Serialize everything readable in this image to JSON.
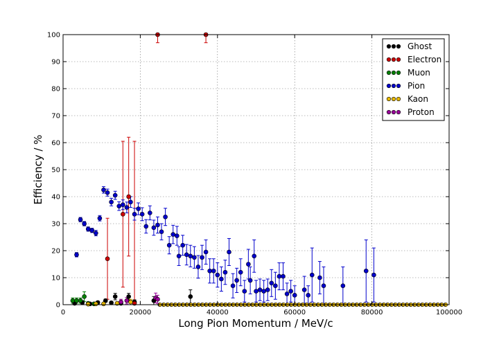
{
  "chart_data": {
    "type": "scatter",
    "title": "",
    "xlabel": "Long Pion Momentum / MeV/c",
    "ylabel": "Efficiency / %",
    "xlim": [
      0,
      100000
    ],
    "ylim": [
      0,
      100
    ],
    "xticks": [
      0,
      20000,
      40000,
      60000,
      80000,
      100000
    ],
    "yticks": [
      0,
      10,
      20,
      30,
      40,
      50,
      60,
      70,
      80,
      90,
      100
    ],
    "grid": true,
    "legend_position": "top-right",
    "series": [
      {
        "name": "Ghost",
        "color": "#000000",
        "points": [
          {
            "x": 3000,
            "y": 0.5,
            "err": 0.5
          },
          {
            "x": 5000,
            "y": 0.8,
            "err": 0.7
          },
          {
            "x": 7000,
            "y": 0.3,
            "err": 0.3
          },
          {
            "x": 9000,
            "y": 0.8,
            "err": 0.5
          },
          {
            "x": 11000,
            "y": 1.5,
            "err": 0.6
          },
          {
            "x": 12500,
            "y": 0.7,
            "err": 0.5
          },
          {
            "x": 13500,
            "y": 3.0,
            "err": 1.2
          },
          {
            "x": 15000,
            "y": 0.5,
            "err": 0.5
          },
          {
            "x": 17000,
            "y": 3.0,
            "err": 1.2
          },
          {
            "x": 18500,
            "y": 1.0,
            "err": 0.8
          },
          {
            "x": 23500,
            "y": 1.5,
            "err": 1.5
          },
          {
            "x": 33000,
            "y": 3.0,
            "err": 2.5
          }
        ]
      },
      {
        "name": "Electron",
        "color": "#cc0000",
        "points": [
          {
            "x": 11500,
            "y": 17.0,
            "err": 15.0
          },
          {
            "x": 15500,
            "y": 33.5,
            "err": 27.0
          },
          {
            "x": 17000,
            "y": 40.0,
            "err": 22.0
          },
          {
            "x": 18500,
            "y": 0.5,
            "err": 60.0
          },
          {
            "x": 24500,
            "y": 100.0,
            "err": 3.0
          },
          {
            "x": 37000,
            "y": 100.0,
            "err": 3.0
          }
        ]
      },
      {
        "name": "Muon",
        "color": "#008000",
        "points": [
          {
            "x": 2500,
            "y": 1.5,
            "err": 1.0
          },
          {
            "x": 3500,
            "y": 1.5,
            "err": 1.0
          },
          {
            "x": 4500,
            "y": 1.5,
            "err": 1.0
          },
          {
            "x": 5500,
            "y": 3.0,
            "err": 1.8
          },
          {
            "x": 6500,
            "y": 0.5,
            "err": 0.5
          },
          {
            "x": 8000,
            "y": 0.3,
            "err": 0.3
          }
        ]
      },
      {
        "name": "Pion",
        "color": "#0000cc",
        "points": [
          {
            "x": 3500,
            "y": 18.5,
            "err": 0.8
          },
          {
            "x": 4500,
            "y": 31.5,
            "err": 0.8
          },
          {
            "x": 5500,
            "y": 30.0,
            "err": 0.8
          },
          {
            "x": 6500,
            "y": 28.0,
            "err": 0.8
          },
          {
            "x": 7500,
            "y": 27.5,
            "err": 0.8
          },
          {
            "x": 8500,
            "y": 26.5,
            "err": 1.0
          },
          {
            "x": 9500,
            "y": 32.0,
            "err": 1.0
          },
          {
            "x": 10500,
            "y": 42.5,
            "err": 1.2
          },
          {
            "x": 11500,
            "y": 41.5,
            "err": 1.3
          },
          {
            "x": 12500,
            "y": 38.0,
            "err": 1.4
          },
          {
            "x": 13500,
            "y": 40.5,
            "err": 1.5
          },
          {
            "x": 14500,
            "y": 36.5,
            "err": 1.6
          },
          {
            "x": 15500,
            "y": 37.0,
            "err": 1.8
          },
          {
            "x": 16500,
            "y": 36.0,
            "err": 2.0
          },
          {
            "x": 17500,
            "y": 38.0,
            "err": 2.0
          },
          {
            "x": 18500,
            "y": 33.5,
            "err": 2.2
          },
          {
            "x": 19500,
            "y": 35.5,
            "err": 2.2
          },
          {
            "x": 20500,
            "y": 33.5,
            "err": 2.4
          },
          {
            "x": 21500,
            "y": 29.0,
            "err": 2.5
          },
          {
            "x": 22500,
            "y": 34.0,
            "err": 2.6
          },
          {
            "x": 23500,
            "y": 28.5,
            "err": 2.8
          },
          {
            "x": 24500,
            "y": 29.5,
            "err": 3.0
          },
          {
            "x": 25500,
            "y": 27.0,
            "err": 3.0
          },
          {
            "x": 26500,
            "y": 32.5,
            "err": 3.2
          },
          {
            "x": 27500,
            "y": 22.0,
            "err": 3.2
          },
          {
            "x": 28500,
            "y": 26.0,
            "err": 3.4
          },
          {
            "x": 29500,
            "y": 25.5,
            "err": 3.5
          },
          {
            "x": 30000,
            "y": 18.0,
            "err": 3.5
          },
          {
            "x": 31000,
            "y": 22.0,
            "err": 3.7
          },
          {
            "x": 32000,
            "y": 18.5,
            "err": 3.8
          },
          {
            "x": 33000,
            "y": 18.0,
            "err": 4.0
          },
          {
            "x": 34000,
            "y": 17.5,
            "err": 4.0
          },
          {
            "x": 35000,
            "y": 14.0,
            "err": 4.2
          },
          {
            "x": 36000,
            "y": 17.5,
            "err": 4.5
          },
          {
            "x": 37000,
            "y": 19.5,
            "err": 4.5
          },
          {
            "x": 38000,
            "y": 12.5,
            "err": 4.5
          },
          {
            "x": 39000,
            "y": 12.5,
            "err": 4.5
          },
          {
            "x": 40000,
            "y": 11.0,
            "err": 4.5
          },
          {
            "x": 41000,
            "y": 9.5,
            "err": 4.5
          },
          {
            "x": 42000,
            "y": 12.0,
            "err": 4.5
          },
          {
            "x": 43000,
            "y": 19.5,
            "err": 5.0
          },
          {
            "x": 44000,
            "y": 7.0,
            "err": 4.5
          },
          {
            "x": 45000,
            "y": 9.0,
            "err": 4.5
          },
          {
            "x": 46000,
            "y": 12.0,
            "err": 5.0
          },
          {
            "x": 47000,
            "y": 5.0,
            "err": 4.0
          },
          {
            "x": 48000,
            "y": 15.0,
            "err": 5.5
          },
          {
            "x": 48500,
            "y": 9.0,
            "err": 5.0
          },
          {
            "x": 49500,
            "y": 18.0,
            "err": 6.0
          },
          {
            "x": 50000,
            "y": 5.0,
            "err": 4.0
          },
          {
            "x": 51000,
            "y": 5.5,
            "err": 4.0
          },
          {
            "x": 52000,
            "y": 5.0,
            "err": 4.0
          },
          {
            "x": 53000,
            "y": 5.5,
            "err": 4.0
          },
          {
            "x": 54000,
            "y": 8.0,
            "err": 5.0
          },
          {
            "x": 55000,
            "y": 7.0,
            "err": 5.0
          },
          {
            "x": 56000,
            "y": 10.5,
            "err": 5.0
          },
          {
            "x": 57000,
            "y": 10.5,
            "err": 5.0
          },
          {
            "x": 58000,
            "y": 4.0,
            "err": 4.0
          },
          {
            "x": 59000,
            "y": 5.0,
            "err": 4.0
          },
          {
            "x": 60000,
            "y": 3.5,
            "err": 3.5
          },
          {
            "x": 62500,
            "y": 5.5,
            "err": 5.0
          },
          {
            "x": 63500,
            "y": 3.5,
            "err": 3.5
          },
          {
            "x": 64500,
            "y": 11.0,
            "err": 10.0
          },
          {
            "x": 66500,
            "y": 10.0,
            "err": 6.0
          },
          {
            "x": 67500,
            "y": 7.0,
            "err": 7.0
          },
          {
            "x": 72500,
            "y": 7.0,
            "err": 7.0
          },
          {
            "x": 78500,
            "y": 12.5,
            "err": 11.5
          },
          {
            "x": 80500,
            "y": 11.0,
            "err": 10.0
          }
        ]
      },
      {
        "name": "Kaon",
        "color": "#e6b800",
        "points": [
          {
            "x": 6500,
            "y": 0.2,
            "err": 0.2
          },
          {
            "x": 8500,
            "y": 0.3,
            "err": 0.3
          },
          {
            "x": 10500,
            "y": 0.3,
            "err": 0.3
          },
          {
            "x": 14000,
            "y": 0.5,
            "err": 0.5
          },
          {
            "x": 17500,
            "y": 1.0,
            "err": 1.0
          }
        ]
      },
      {
        "name": "Proton",
        "color": "#990099",
        "points": [
          {
            "x": 15000,
            "y": 1.0,
            "err": 1.0
          },
          {
            "x": 16500,
            "y": 1.5,
            "err": 1.2
          },
          {
            "x": 24000,
            "y": 2.5,
            "err": 1.8
          },
          {
            "x": 24500,
            "y": 2.0,
            "err": 1.5
          }
        ]
      }
    ]
  }
}
